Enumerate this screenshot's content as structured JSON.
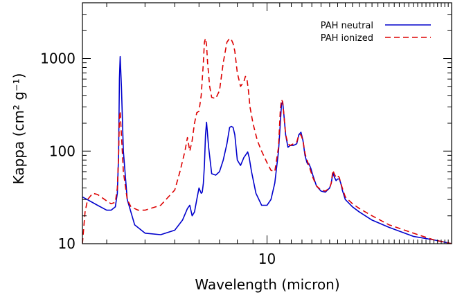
{
  "chart_data": {
    "type": "line",
    "xlabel": "Wavelength (micron)",
    "ylabel": "Kappa (cm² g⁻¹)",
    "xscale": "log",
    "yscale": "log",
    "xlim": [
      2.5,
      40
    ],
    "ylim": [
      10,
      4000
    ],
    "x_major_tick_labels": [
      "10"
    ],
    "y_major_tick_labels": [
      "10",
      "100",
      "1000"
    ],
    "grid": false,
    "legend_position": "top-right",
    "series": [
      {
        "name": "PAH neutral",
        "color": "#0000cc",
        "dash": "solid",
        "x": [
          2.5,
          2.8,
          3.0,
          3.1,
          3.2,
          3.25,
          3.28,
          3.3,
          3.32,
          3.35,
          3.4,
          3.5,
          3.7,
          4.0,
          4.5,
          5.0,
          5.3,
          5.5,
          5.6,
          5.7,
          5.8,
          5.9,
          6.0,
          6.1,
          6.15,
          6.2,
          6.25,
          6.3,
          6.35,
          6.45,
          6.6,
          6.8,
          7.0,
          7.2,
          7.4,
          7.55,
          7.65,
          7.75,
          7.85,
          8.0,
          8.2,
          8.4,
          8.6,
          8.65,
          8.75,
          8.9,
          9.2,
          9.6,
          10.0,
          10.3,
          10.6,
          10.9,
          11.05,
          11.15,
          11.25,
          11.35,
          11.5,
          11.7,
          11.9,
          12.2,
          12.5,
          12.7,
          12.9,
          13.1,
          13.3,
          13.5,
          13.6,
          13.7,
          13.9,
          14.1,
          14.5,
          15.0,
          15.5,
          16.0,
          16.2,
          16.4,
          16.6,
          16.8,
          17.0,
          17.2,
          17.4,
          17.6,
          18.0,
          19.0,
          20.0,
          22.0,
          25.0,
          30.0,
          35.0,
          40.0
        ],
        "y": [
          32,
          26,
          23,
          23,
          25,
          35,
          90,
          600,
          1050,
          500,
          100,
          30,
          16,
          13,
          12.5,
          14,
          18,
          24,
          26,
          20,
          22,
          30,
          40,
          35,
          36,
          45,
          70,
          150,
          205,
          110,
          57,
          55,
          60,
          80,
          120,
          180,
          185,
          180,
          150,
          80,
          70,
          85,
          95,
          98,
          85,
          60,
          35,
          26,
          26,
          30,
          45,
          100,
          200,
          320,
          340,
          250,
          150,
          110,
          115,
          115,
          120,
          150,
          160,
          130,
          90,
          75,
          72,
          73,
          65,
          55,
          42,
          37,
          36,
          40,
          45,
          58,
          52,
          48,
          50,
          50,
          45,
          38,
          30,
          25,
          22,
          18,
          15,
          12,
          11,
          9.5
        ]
      },
      {
        "name": "PAH ionized",
        "color": "#dd0000",
        "dash": "dashed",
        "x": [
          2.5,
          2.55,
          2.6,
          2.7,
          2.8,
          3.0,
          3.1,
          3.2,
          3.25,
          3.28,
          3.3,
          3.32,
          3.35,
          3.4,
          3.5,
          3.6,
          3.8,
          4.0,
          4.5,
          5.0,
          5.2,
          5.4,
          5.5,
          5.6,
          5.7,
          5.8,
          5.9,
          6.0,
          6.1,
          6.2,
          6.25,
          6.3,
          6.35,
          6.4,
          6.5,
          6.6,
          6.8,
          7.0,
          7.2,
          7.4,
          7.55,
          7.65,
          7.75,
          7.85,
          8.0,
          8.2,
          8.4,
          8.5,
          8.6,
          8.7,
          8.8,
          9.0,
          9.3,
          9.6,
          10.0,
          10.3,
          10.6,
          10.9,
          11.05,
          11.15,
          11.25,
          11.35,
          11.5,
          11.7,
          11.9,
          12.2,
          12.5,
          12.7,
          12.9,
          13.1,
          13.3,
          13.5,
          13.6,
          13.7,
          13.9,
          14.1,
          14.5,
          15.0,
          15.5,
          16.0,
          16.2,
          16.4,
          16.6,
          16.8,
          17.0,
          17.2,
          17.4,
          17.6,
          18.0,
          19.0,
          20.0,
          22.0,
          25.0,
          30.0,
          35.0,
          40.0
        ],
        "y": [
          10,
          22,
          30,
          35,
          34,
          29,
          27,
          28,
          40,
          90,
          230,
          270,
          150,
          60,
          30,
          25,
          23,
          23,
          26,
          38,
          60,
          100,
          140,
          100,
          130,
          200,
          260,
          270,
          400,
          900,
          1500,
          1650,
          1400,
          900,
          500,
          380,
          370,
          450,
          900,
          1500,
          1650,
          1600,
          1450,
          1200,
          700,
          500,
          560,
          640,
          600,
          450,
          300,
          200,
          130,
          100,
          75,
          62,
          60,
          110,
          280,
          360,
          340,
          250,
          150,
          120,
          115,
          120,
          125,
          150,
          150,
          130,
          95,
          80,
          75,
          70,
          60,
          52,
          42,
          38,
          37,
          40,
          45,
          62,
          56,
          52,
          54,
          52,
          45,
          40,
          32,
          27,
          24,
          20,
          16,
          13,
          11,
          10
        ]
      }
    ]
  }
}
